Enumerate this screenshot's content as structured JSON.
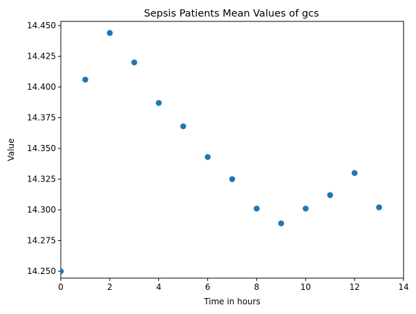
{
  "chart_data": {
    "type": "scatter",
    "title": "Sepsis Patients Mean Values of gcs",
    "xlabel": "Time in hours",
    "ylabel": "Value",
    "xlim": [
      0,
      14
    ],
    "ylim": [
      14.2444,
      14.4534
    ],
    "grid": false,
    "legend": "none",
    "marker_color": "#1f77b4",
    "x_ticks": [
      0,
      2,
      4,
      6,
      8,
      10,
      12,
      14
    ],
    "x_tick_labels": [
      "0",
      "2",
      "4",
      "6",
      "8",
      "10",
      "12",
      "14"
    ],
    "y_ticks": [
      14.25,
      14.275,
      14.3,
      14.325,
      14.35,
      14.375,
      14.4,
      14.425,
      14.45
    ],
    "y_tick_labels": [
      "14.250",
      "14.275",
      "14.300",
      "14.325",
      "14.350",
      "14.375",
      "14.400",
      "14.425",
      "14.450"
    ],
    "series": [
      {
        "x": [
          0,
          1,
          2,
          3,
          4,
          5,
          6,
          7,
          8,
          9,
          10,
          11,
          12,
          13
        ],
        "y": [
          14.25,
          14.406,
          14.444,
          14.42,
          14.387,
          14.368,
          14.343,
          14.325,
          14.301,
          14.289,
          14.301,
          14.312,
          14.33,
          14.302
        ]
      }
    ]
  }
}
